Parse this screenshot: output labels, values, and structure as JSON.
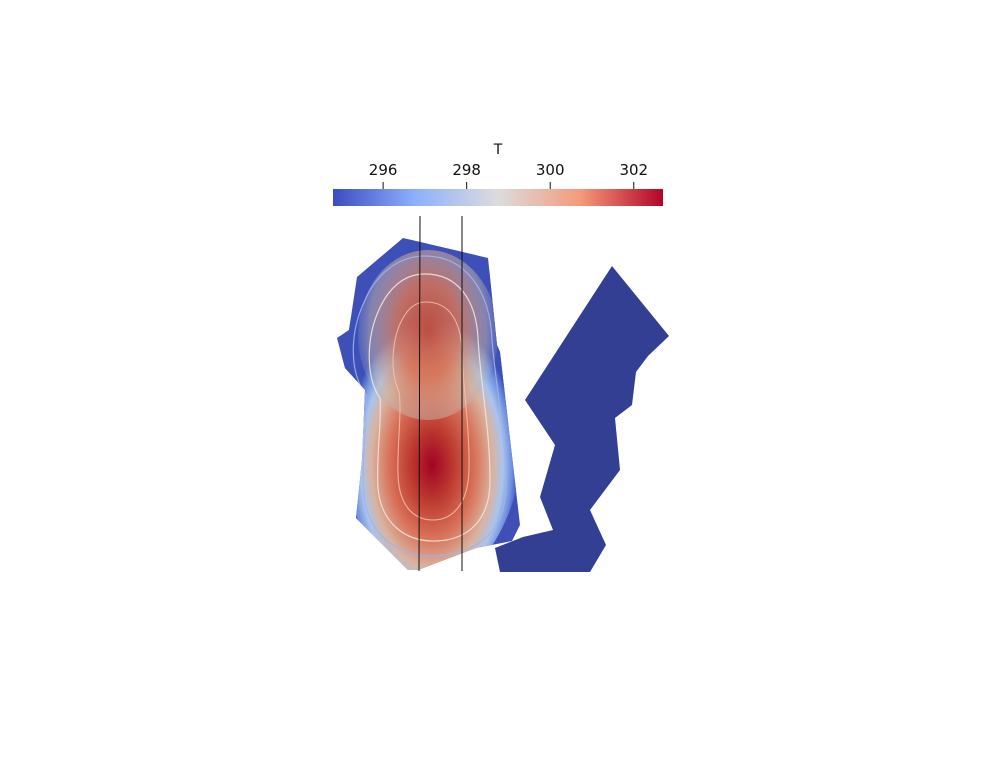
{
  "colorbar": {
    "title": "T",
    "ticks": [
      {
        "value": 296,
        "label": "296"
      },
      {
        "value": 298,
        "label": "298"
      },
      {
        "value": 300,
        "label": "300"
      },
      {
        "value": 302,
        "label": "302"
      }
    ],
    "range": [
      294.8,
      302.7
    ],
    "colormap": [
      "#3b4cc0",
      "#8db0fe",
      "#dddcdc",
      "#f49a7b",
      "#b40426"
    ]
  },
  "field": {
    "hot_color": "#b40426",
    "cold_color": "#323f93",
    "contour_color": "#f3e9e0",
    "line_color": "#111111"
  }
}
